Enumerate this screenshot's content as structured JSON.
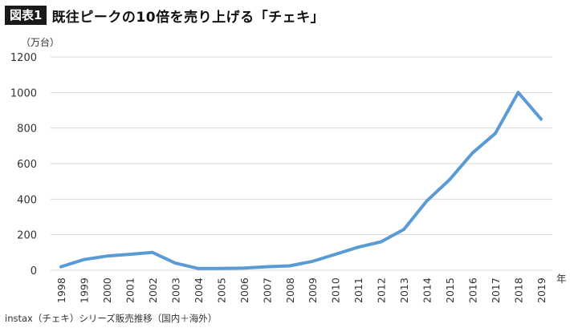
{
  "header": {
    "badge": "図表1",
    "title": "既往ピークの10倍を売り上げる「チェキ」"
  },
  "source_note": "instax（チェキ）シリーズ販売推移（国内＋海外）",
  "chart_data": {
    "type": "line",
    "ylabel": "（万台）",
    "xlabel": "年",
    "ylim": [
      0,
      1200
    ],
    "yticks": [
      0,
      200,
      400,
      600,
      800,
      1000,
      1200
    ],
    "grid": true,
    "line_color": "#5b9bd5",
    "categories": [
      "1998",
      "1999",
      "2000",
      "2001",
      "2002",
      "2003",
      "2004",
      "2005",
      "2006",
      "2007",
      "2008",
      "2009",
      "2010",
      "2011",
      "2012",
      "2013",
      "2014",
      "2015",
      "2016",
      "2017",
      "2018",
      "2019"
    ],
    "series": [
      {
        "values": [
          20,
          60,
          80,
          90,
          100,
          40,
          10,
          10,
          12,
          20,
          25,
          50,
          90,
          130,
          160,
          230,
          390,
          510,
          660,
          770,
          1000,
          850
        ]
      }
    ]
  }
}
